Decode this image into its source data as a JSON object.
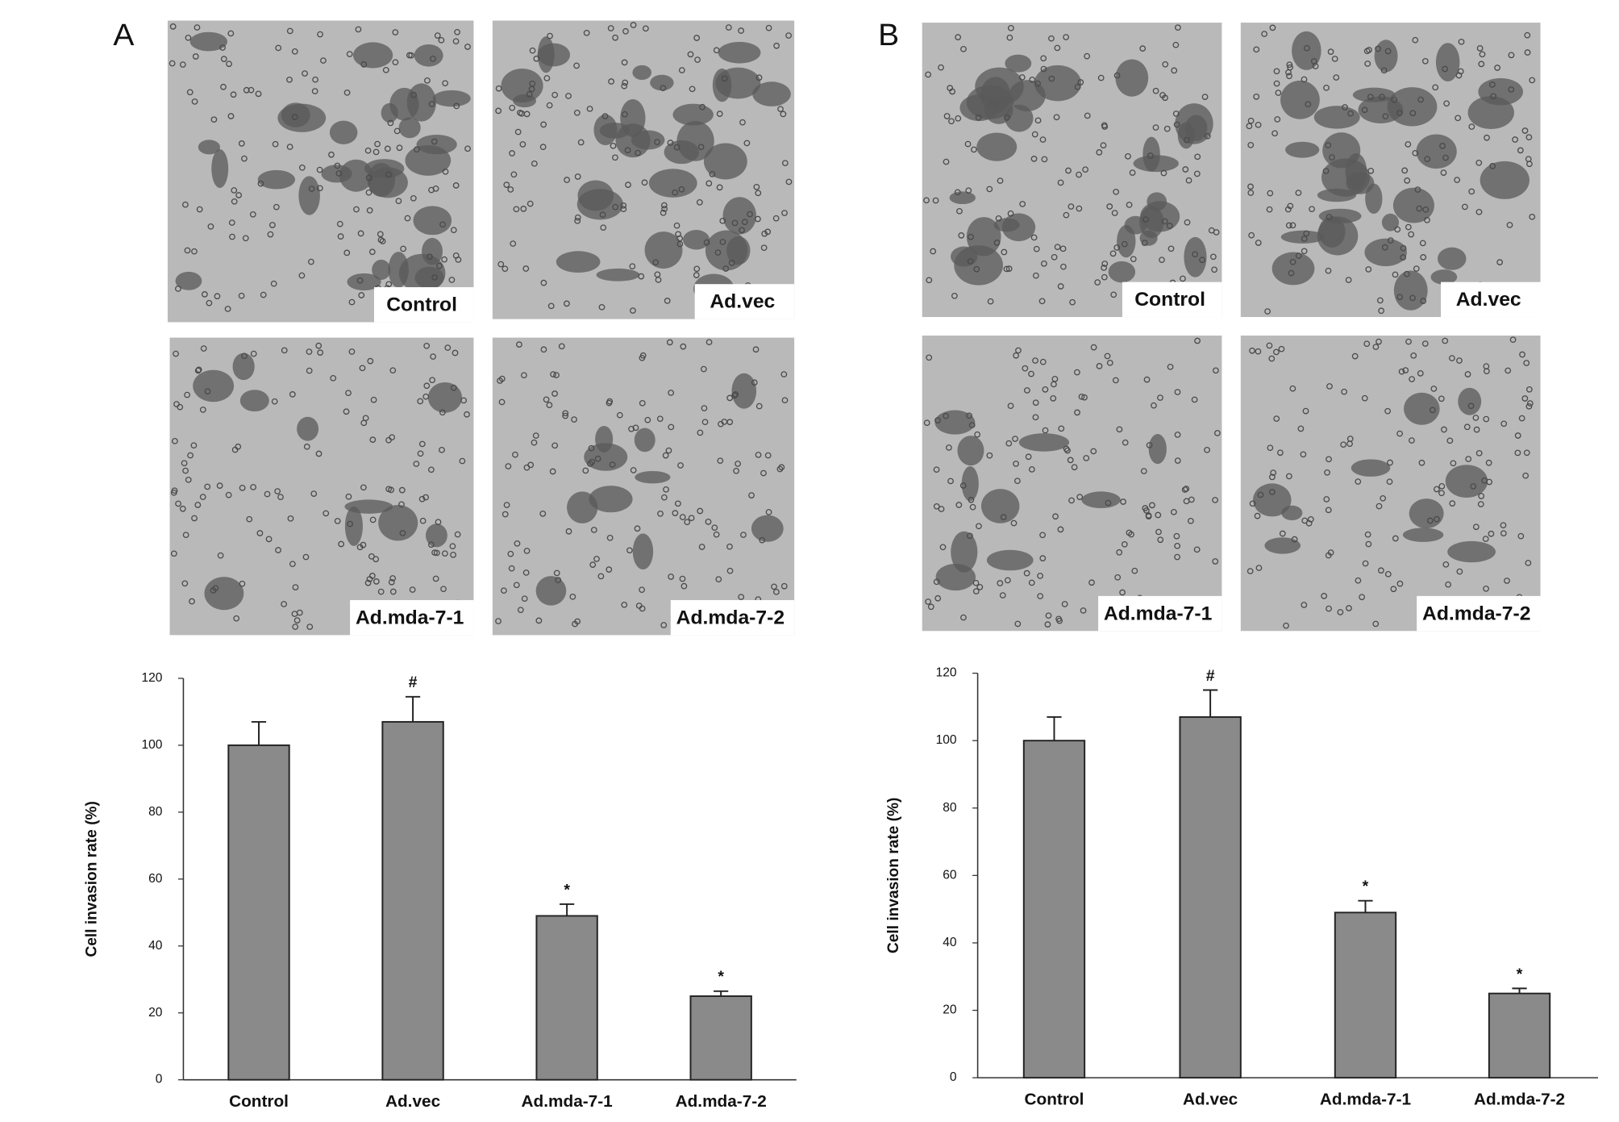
{
  "panels": [
    {
      "label": "A",
      "images": [
        "Control",
        "Ad.vec",
        "Ad.mda-7-1",
        "Ad.mda-7-2"
      ]
    },
    {
      "label": "B",
      "images": [
        "Control",
        "Ad.vec",
        "Ad.mda-7-1",
        "Ad.mda-7-2"
      ]
    }
  ],
  "chart_data": [
    {
      "type": "bar",
      "y_label": "Cell invasion rate (%)",
      "categories": [
        "Control",
        "Ad.vec",
        "Ad.mda-7-1",
        "Ad.mda-7-2"
      ],
      "values": [
        100,
        107,
        49,
        25
      ],
      "errors": [
        7,
        7.5,
        3.5,
        1.5
      ],
      "annotations": [
        null,
        "#",
        "*",
        "*"
      ],
      "color": "#8a8a8a",
      "ylim": [
        0,
        120
      ],
      "yticks": [
        0,
        20,
        40,
        60,
        80,
        100,
        120
      ]
    },
    {
      "type": "bar",
      "y_label": "Cell invasion rate (%)",
      "categories": [
        "Control",
        "Ad.vec",
        "Ad.mda-7-1",
        "Ad.mda-7-2"
      ],
      "values": [
        100,
        107,
        49,
        25
      ],
      "errors": [
        7,
        8,
        3.5,
        1.5
      ],
      "annotations": [
        null,
        "#",
        "*",
        "*"
      ],
      "color": "#8a8a8a",
      "ylim": [
        0,
        120
      ],
      "yticks": [
        0,
        20,
        40,
        60,
        80,
        100,
        120
      ]
    }
  ]
}
